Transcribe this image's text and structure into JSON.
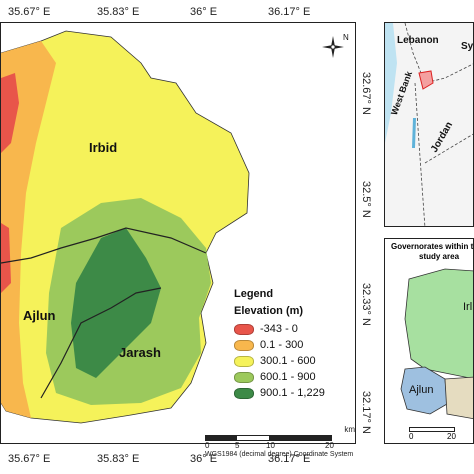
{
  "axis": {
    "top": [
      "35.67° E",
      "35.83° E",
      "36° E",
      "36.17° E"
    ],
    "bottom": [
      "35.67° E",
      "35.83° E",
      "36° E",
      "36.17° E"
    ],
    "right": [
      "32.67° N",
      "32.5° N",
      "32.33° N",
      "32.17° N"
    ]
  },
  "regions": {
    "irbid": "Irbid",
    "ajlun": "Ajlun",
    "jarash": "Jarash"
  },
  "legend": {
    "title": "Legend",
    "subtitle": "Elevation (m)",
    "classes": [
      {
        "label": "-343 - 0",
        "color": "#e8554a"
      },
      {
        "label": "0.1 - 300",
        "color": "#f8b74d"
      },
      {
        "label": "300.1 - 600",
        "color": "#f5f25a"
      },
      {
        "label": "600.1 - 900",
        "color": "#9cc95c"
      },
      {
        "label": "900.1 - 1,229",
        "color": "#3d8a47"
      }
    ]
  },
  "scale": {
    "unit": "km",
    "ticks": [
      "0",
      "5",
      "10",
      "20"
    ],
    "caption": "WGS1984 (decimal degree) Coordinate System"
  },
  "inset_top": {
    "labels": {
      "lebanon": "Lebanon",
      "syria": "Sy",
      "west_bank": "West Bank",
      "jordan": "Jordan"
    }
  },
  "inset_bottom": {
    "title_line1": "Governorates within the",
    "title_line2": "study area",
    "labels": {
      "irbid": "Irl",
      "ajlun": "Ajlun"
    },
    "scale_ticks": [
      "0",
      "20"
    ]
  },
  "north_arrow": "N"
}
